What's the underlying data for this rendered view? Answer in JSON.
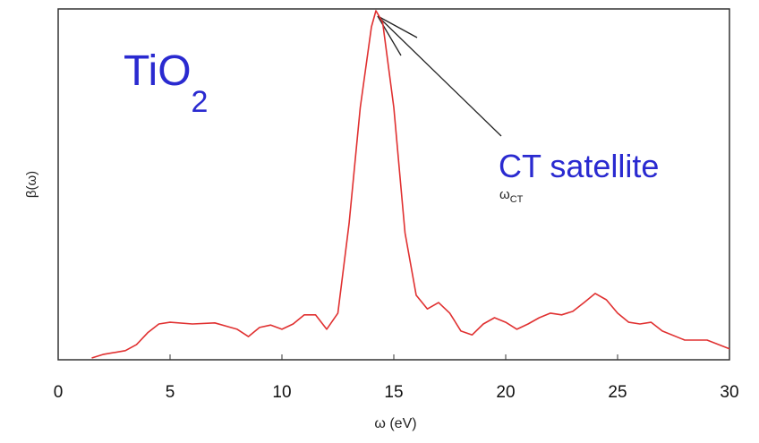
{
  "chart_data": {
    "type": "line",
    "annotations": {
      "formula": {
        "text": "TiO",
        "subscript": "2"
      },
      "satellite": "CT satellite",
      "omega": {
        "text": "ω",
        "subscript": "CT"
      }
    },
    "xlabel": "ω (eV)",
    "ylabel": "β(ω)",
    "x": [
      1.5,
      2,
      3,
      3.5,
      4,
      4.5,
      5,
      6,
      7,
      8,
      8.5,
      9,
      9.5,
      10,
      10.5,
      11,
      11.5,
      12,
      12.5,
      13,
      13.5,
      14,
      14.2,
      14.5,
      15,
      15.5,
      16,
      16.5,
      17,
      17.5,
      18,
      18.5,
      19,
      19.5,
      20,
      20.5,
      21,
      21.5,
      22,
      22.5,
      23,
      23.5,
      24,
      24.5,
      25,
      25.5,
      26,
      26.5,
      27,
      28,
      29,
      30
    ],
    "series": [
      {
        "name": "β(ω)",
        "color": "#e03030",
        "values": [
          0.005,
          0.015,
          0.026,
          0.043,
          0.077,
          0.102,
          0.107,
          0.102,
          0.105,
          0.087,
          0.066,
          0.092,
          0.099,
          0.087,
          0.102,
          0.128,
          0.128,
          0.087,
          0.133,
          0.388,
          0.719,
          0.949,
          0.995,
          0.962,
          0.719,
          0.362,
          0.184,
          0.145,
          0.163,
          0.133,
          0.082,
          0.071,
          0.102,
          0.12,
          0.107,
          0.087,
          0.102,
          0.12,
          0.133,
          0.128,
          0.138,
          0.163,
          0.189,
          0.171,
          0.133,
          0.107,
          0.102,
          0.107,
          0.082,
          0.056,
          0.056,
          0.031
        ]
      }
    ],
    "xlim": [
      0,
      30
    ],
    "xticks": [
      0,
      5,
      10,
      15,
      20,
      25,
      30
    ],
    "ylim": [
      0,
      1
    ]
  }
}
